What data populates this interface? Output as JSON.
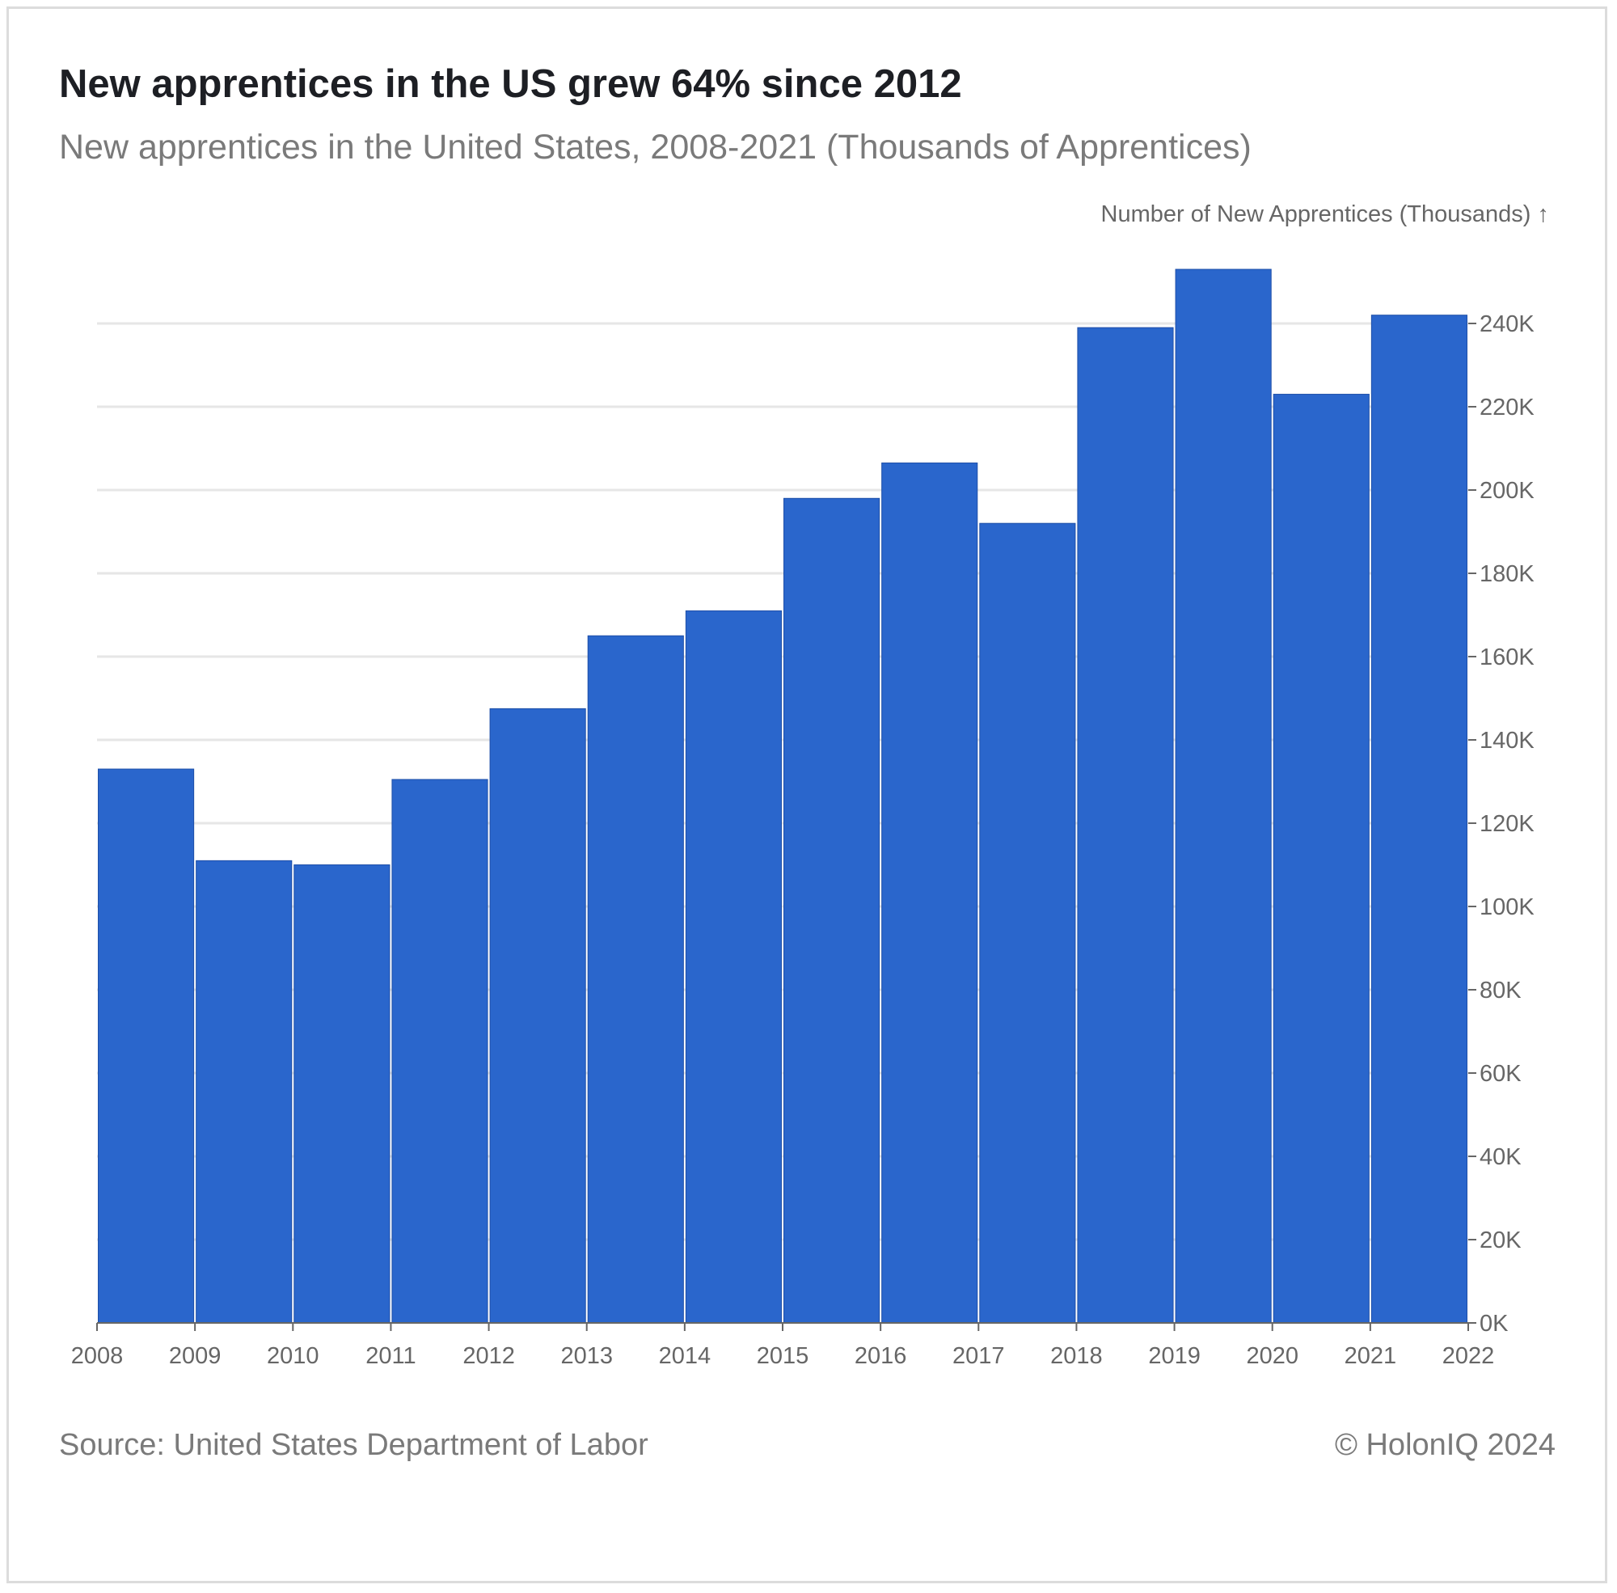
{
  "header": {
    "title": "New apprentices in the US grew 64% since 2012",
    "subtitle": "New apprentices in the United States, 2008-2021 (Thousands of Apprentices)"
  },
  "footer": {
    "source": "Source: United States Department of Labor",
    "copyright": "© HolonIQ 2024"
  },
  "colors": {
    "bar": "#2a66cc",
    "grid": "#e6e6e6",
    "axis": "#666666"
  },
  "chart_data": {
    "type": "bar",
    "ylabel": "Number of New Apprentices (Thousands) ↑",
    "ylim": [
      0,
      240000
    ],
    "grid": true,
    "y_axis_position": "right",
    "x_bin_edges": [
      "2008",
      "2009",
      "2010",
      "2011",
      "2012",
      "2013",
      "2014",
      "2015",
      "2016",
      "2017",
      "2018",
      "2019",
      "2020",
      "2021",
      "2022"
    ],
    "categories": [
      "2008",
      "2009",
      "2010",
      "2011",
      "2012",
      "2013",
      "2014",
      "2015",
      "2016",
      "2017",
      "2018",
      "2019",
      "2020",
      "2021"
    ],
    "values": [
      133000,
      111000,
      110000,
      130500,
      147500,
      165000,
      171000,
      198000,
      206500,
      192000,
      239000,
      253000,
      223000,
      242000
    ],
    "y_ticks": [
      {
        "value": 0,
        "label": "0K"
      },
      {
        "value": 20000,
        "label": "20K"
      },
      {
        "value": 40000,
        "label": "40K"
      },
      {
        "value": 60000,
        "label": "60K"
      },
      {
        "value": 80000,
        "label": "80K"
      },
      {
        "value": 100000,
        "label": "100K"
      },
      {
        "value": 120000,
        "label": "120K"
      },
      {
        "value": 140000,
        "label": "140K"
      },
      {
        "value": 160000,
        "label": "160K"
      },
      {
        "value": 180000,
        "label": "180K"
      },
      {
        "value": 200000,
        "label": "200K"
      },
      {
        "value": 220000,
        "label": "220K"
      },
      {
        "value": 240000,
        "label": "240K"
      }
    ]
  }
}
